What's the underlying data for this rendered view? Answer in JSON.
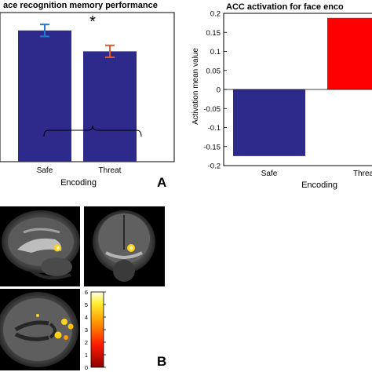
{
  "colors": {
    "navy": "#2e2a8c",
    "red": "#ff0000",
    "safe_error": "#1f7ac8",
    "threat_error": "#e1582a"
  },
  "panel_labels": {
    "a": "A",
    "b": "B"
  },
  "chart_data": [
    {
      "type": "bar",
      "title": "ace recognition memory performance",
      "xlabel": "Encoding",
      "ylabel": "",
      "categories": [
        "Safe",
        "Threat"
      ],
      "values": [
        0.88,
        0.74
      ],
      "errors": [
        0.04,
        0.04
      ],
      "ylim": [
        0,
        1.0
      ],
      "annotation": "*",
      "grid": false
    },
    {
      "type": "bar",
      "title": "ACC activation for face enco",
      "xlabel": "Encoding",
      "ylabel": "Activation mean value",
      "categories": [
        "Safe",
        "Threa"
      ],
      "values": [
        -0.175,
        0.188
      ],
      "ylim": [
        -0.2,
        0.2
      ],
      "yticks": [
        "0.2",
        "0.15",
        "0.1",
        "0.05",
        "0",
        "-0.05",
        "-0.1",
        "-0.15",
        "-0.2"
      ],
      "grid": false
    }
  ],
  "colorbar": {
    "ticks": [
      "6",
      "5",
      "4",
      "3",
      "2",
      "1",
      "0"
    ],
    "range": [
      0,
      6
    ]
  }
}
